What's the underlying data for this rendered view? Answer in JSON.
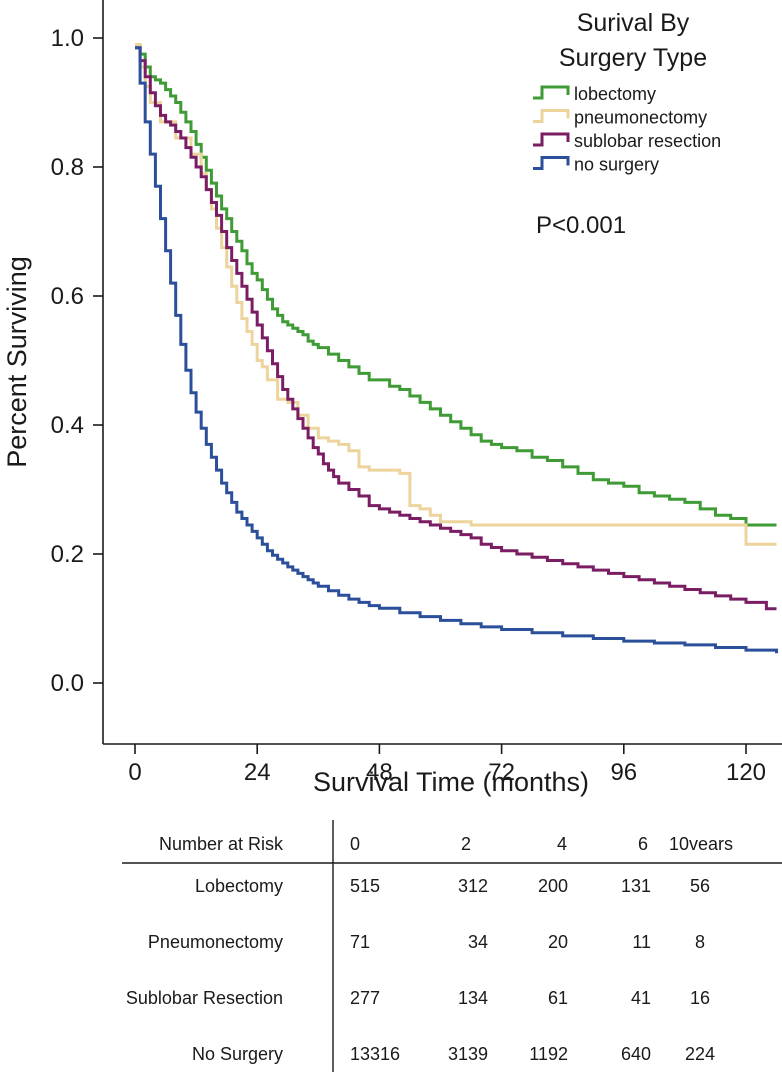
{
  "chart_data": {
    "type": "line",
    "subtype": "kaplan-meier step",
    "xlabel": "Survival Time (months)",
    "ylabel": "Percent Surviving",
    "xlim": [
      -6,
      126
    ],
    "ylim": [
      -0.1,
      1.05
    ],
    "xticks": [
      0,
      24,
      48,
      72,
      96,
      120
    ],
    "yticks": [
      0.0,
      0.2,
      0.4,
      0.6,
      0.8,
      1.0
    ],
    "ytick_labels": [
      "0.0",
      "0.2",
      "0.4",
      "0.6",
      "0.8",
      "1.0"
    ],
    "grid": false,
    "legend": {
      "title_line1": "Surival By",
      "title_line2": "Surgery Type",
      "position": "top-right"
    },
    "annotation": "P<0.001",
    "series": [
      {
        "name": "lobectomy",
        "color": "#3f9b35",
        "x": [
          0,
          1,
          2,
          3,
          4,
          5,
          6,
          7,
          8,
          9,
          10,
          11,
          12,
          13,
          14,
          15,
          16,
          17,
          18,
          19,
          20,
          21,
          22,
          23,
          24,
          25,
          26,
          27,
          28,
          29,
          30,
          31,
          32,
          33,
          34,
          35,
          36,
          38,
          40,
          42,
          44,
          46,
          48,
          50,
          52,
          54,
          56,
          58,
          60,
          62,
          64,
          66,
          68,
          70,
          72,
          75,
          78,
          81,
          84,
          87,
          90,
          93,
          96,
          99,
          102,
          105,
          108,
          111,
          114,
          117,
          120,
          126
        ],
        "y": [
          0.99,
          0.975,
          0.955,
          0.94,
          0.935,
          0.93,
          0.92,
          0.91,
          0.9,
          0.885,
          0.87,
          0.855,
          0.835,
          0.815,
          0.795,
          0.775,
          0.755,
          0.735,
          0.72,
          0.7,
          0.685,
          0.67,
          0.65,
          0.635,
          0.625,
          0.61,
          0.595,
          0.58,
          0.57,
          0.56,
          0.555,
          0.55,
          0.545,
          0.54,
          0.53,
          0.525,
          0.52,
          0.51,
          0.5,
          0.49,
          0.48,
          0.47,
          0.47,
          0.46,
          0.455,
          0.445,
          0.435,
          0.425,
          0.415,
          0.405,
          0.395,
          0.385,
          0.375,
          0.37,
          0.365,
          0.36,
          0.35,
          0.345,
          0.335,
          0.325,
          0.315,
          0.31,
          0.305,
          0.295,
          0.29,
          0.285,
          0.28,
          0.27,
          0.26,
          0.255,
          0.245,
          0.245
        ]
      },
      {
        "name": "pneumonectomy",
        "color": "#ecd49c",
        "x": [
          0,
          1,
          2,
          3,
          5,
          8,
          11,
          13,
          14,
          15,
          16,
          17,
          18,
          19,
          20,
          21,
          22,
          23,
          24,
          25,
          26,
          28,
          30,
          32,
          34,
          36,
          38,
          40,
          42,
          44,
          46,
          48,
          50,
          52,
          54,
          56,
          58,
          60,
          66,
          84,
          96,
          108,
          120,
          126
        ],
        "y": [
          0.99,
          0.955,
          0.925,
          0.9,
          0.87,
          0.845,
          0.82,
          0.79,
          0.765,
          0.735,
          0.705,
          0.675,
          0.645,
          0.615,
          0.59,
          0.565,
          0.545,
          0.525,
          0.5,
          0.49,
          0.47,
          0.44,
          0.435,
          0.415,
          0.395,
          0.38,
          0.375,
          0.37,
          0.36,
          0.335,
          0.33,
          0.33,
          0.33,
          0.325,
          0.275,
          0.27,
          0.26,
          0.25,
          0.245,
          0.245,
          0.245,
          0.245,
          0.215,
          0.215
        ]
      },
      {
        "name": "sublobar resection",
        "color": "#7a1d63",
        "x": [
          0,
          1,
          2,
          3,
          4,
          5,
          6,
          7,
          8,
          9,
          10,
          11,
          12,
          13,
          14,
          15,
          16,
          17,
          18,
          19,
          20,
          21,
          22,
          23,
          24,
          25,
          26,
          27,
          28,
          29,
          30,
          31,
          32,
          33,
          34,
          35,
          36,
          37,
          38,
          39,
          40,
          42,
          44,
          46,
          48,
          50,
          52,
          54,
          56,
          58,
          60,
          62,
          64,
          66,
          68,
          70,
          72,
          75,
          78,
          81,
          84,
          87,
          90,
          93,
          96,
          99,
          102,
          105,
          108,
          111,
          114,
          117,
          120,
          124,
          126
        ],
        "y": [
          0.985,
          0.965,
          0.94,
          0.915,
          0.895,
          0.88,
          0.87,
          0.865,
          0.855,
          0.845,
          0.83,
          0.815,
          0.8,
          0.785,
          0.765,
          0.745,
          0.725,
          0.7,
          0.675,
          0.655,
          0.635,
          0.615,
          0.595,
          0.575,
          0.555,
          0.535,
          0.515,
          0.495,
          0.475,
          0.455,
          0.44,
          0.425,
          0.41,
          0.395,
          0.38,
          0.365,
          0.355,
          0.34,
          0.33,
          0.32,
          0.31,
          0.3,
          0.29,
          0.275,
          0.27,
          0.265,
          0.26,
          0.255,
          0.25,
          0.245,
          0.24,
          0.235,
          0.23,
          0.225,
          0.215,
          0.21,
          0.205,
          0.2,
          0.195,
          0.19,
          0.185,
          0.18,
          0.175,
          0.17,
          0.165,
          0.16,
          0.155,
          0.15,
          0.145,
          0.14,
          0.135,
          0.13,
          0.125,
          0.115,
          0.115
        ]
      },
      {
        "name": "no surgery",
        "color": "#2b4f9b",
        "x": [
          0,
          1,
          2,
          3,
          4,
          5,
          6,
          7,
          8,
          9,
          10,
          11,
          12,
          13,
          14,
          15,
          16,
          17,
          18,
          19,
          20,
          21,
          22,
          23,
          24,
          25,
          26,
          27,
          28,
          29,
          30,
          31,
          32,
          33,
          34,
          35,
          36,
          38,
          40,
          42,
          44,
          46,
          48,
          52,
          56,
          60,
          64,
          68,
          72,
          78,
          84,
          90,
          96,
          102,
          108,
          114,
          120,
          126
        ],
        "y": [
          0.985,
          0.93,
          0.87,
          0.82,
          0.77,
          0.72,
          0.67,
          0.62,
          0.57,
          0.525,
          0.485,
          0.45,
          0.42,
          0.395,
          0.37,
          0.35,
          0.33,
          0.31,
          0.295,
          0.28,
          0.265,
          0.255,
          0.245,
          0.235,
          0.225,
          0.215,
          0.205,
          0.198,
          0.192,
          0.186,
          0.18,
          0.175,
          0.17,
          0.165,
          0.16,
          0.155,
          0.15,
          0.143,
          0.136,
          0.13,
          0.125,
          0.12,
          0.116,
          0.109,
          0.103,
          0.097,
          0.092,
          0.087,
          0.083,
          0.078,
          0.073,
          0.069,
          0.065,
          0.062,
          0.059,
          0.055,
          0.051,
          0.046
        ]
      }
    ],
    "risk_table": {
      "header_label": "Number at Risk",
      "columns": [
        "0",
        "2",
        "4",
        "6",
        "10vears"
      ],
      "rows": [
        {
          "label": "Lobectomy",
          "values": [
            "515",
            "312",
            "200",
            "131",
            "56"
          ]
        },
        {
          "label": "Pneumonectomy",
          "values": [
            "71",
            "34",
            "20",
            "11",
            "8"
          ]
        },
        {
          "label": "Sublobar Resection",
          "values": [
            "277",
            "134",
            "61",
            "41",
            "16"
          ]
        },
        {
          "label": "No Surgery",
          "values": [
            "13316",
            "3139",
            "1192",
            "640",
            "224"
          ]
        }
      ]
    }
  }
}
